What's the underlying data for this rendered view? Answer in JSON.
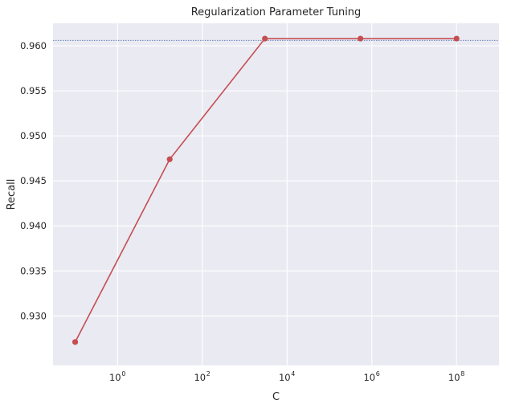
{
  "chart_data": {
    "type": "line",
    "title": "Regularization Parameter Tuning",
    "xlabel": "C",
    "ylabel": "Recall",
    "xscale": "log",
    "xlim": [
      0.03,
      1000000000
    ],
    "ylim": [
      0.9245,
      0.9625
    ],
    "grid": true,
    "x_ticks": [
      {
        "value": 1,
        "base": "10",
        "exp": "0"
      },
      {
        "value": 100,
        "base": "10",
        "exp": "2"
      },
      {
        "value": 10000,
        "base": "10",
        "exp": "4"
      },
      {
        "value": 1000000,
        "base": "10",
        "exp": "6"
      },
      {
        "value": 100000000,
        "base": "10",
        "exp": "8"
      }
    ],
    "y_ticks": [
      "0.930",
      "0.935",
      "0.940",
      "0.945",
      "0.950",
      "0.955",
      "0.960"
    ],
    "series": [
      {
        "color": "#c44e52",
        "x": [
          0.1,
          17,
          3000,
          540000,
          100000000
        ],
        "y": [
          0.9271,
          0.9474,
          0.9608,
          0.9608,
          0.9608
        ]
      }
    ],
    "reference_line": {
      "y": 0.9606,
      "color": "#4c72b0",
      "style": "dotted"
    }
  }
}
